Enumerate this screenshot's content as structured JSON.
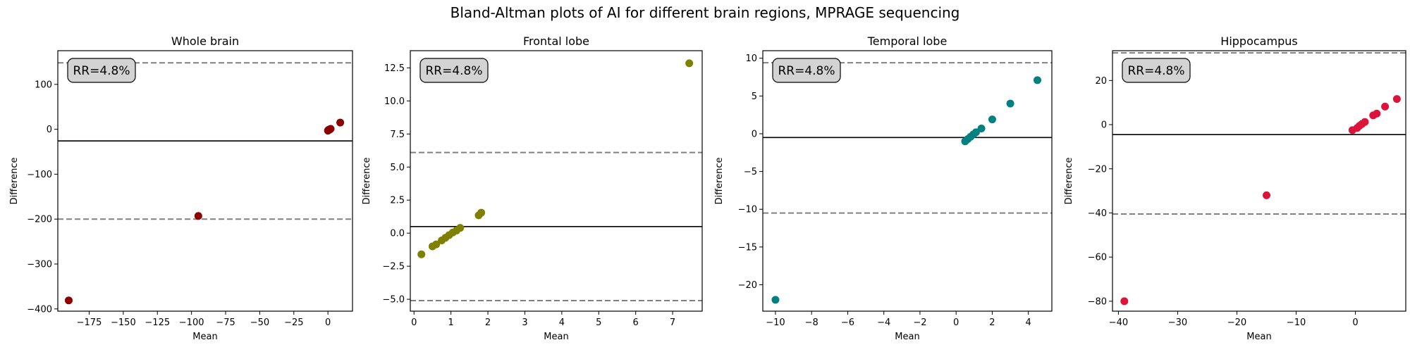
{
  "suptitle": "Bland-Altman plots of AI for different brain regions, MPRAGE sequencing",
  "chart_data": [
    {
      "type": "scatter",
      "title": "Whole brain",
      "xlabel": "Mean",
      "ylabel": "Difference",
      "annotation": "RR=4.8%",
      "color": "#8b0000",
      "xlim": [
        -198,
        18
      ],
      "ylim": [
        -405,
        175
      ],
      "xticks": [
        -175,
        -150,
        -125,
        -100,
        -75,
        -50,
        -25,
        0
      ],
      "yticks": [
        -400,
        -300,
        -200,
        -100,
        0,
        100
      ],
      "mean_line": -26,
      "loa": [
        148,
        -200
      ],
      "x": [
        -190,
        -95,
        0,
        0.5,
        1,
        1.5,
        2,
        1,
        0.3,
        9
      ],
      "y": [
        -381,
        -193,
        -3,
        -2,
        -1,
        0,
        1,
        -0.5,
        -1.5,
        15
      ]
    },
    {
      "type": "scatter",
      "title": "Frontal lobe",
      "xlabel": "Mean",
      "ylabel": "Difference",
      "annotation": "RR=4.8%",
      "color": "#808000",
      "xlim": [
        -0.1,
        7.8
      ],
      "ylim": [
        -5.9,
        13.8
      ],
      "xticks": [
        0,
        1,
        2,
        3,
        4,
        5,
        6,
        7
      ],
      "yticks": [
        -5.0,
        -2.5,
        0.0,
        2.5,
        5.0,
        7.5,
        10.0,
        12.5
      ],
      "ytick_labels": [
        "−5.0",
        "−2.5",
        "0.0",
        "2.5",
        "5.0",
        "7.5",
        "10.0",
        "12.5"
      ],
      "mean_line": 0.5,
      "loa": [
        6.1,
        -5.1
      ],
      "x": [
        0.2,
        0.5,
        0.6,
        0.75,
        0.85,
        0.95,
        1.05,
        1.15,
        1.25,
        1.75,
        1.82,
        7.45
      ],
      "y": [
        -1.6,
        -1.0,
        -0.85,
        -0.55,
        -0.35,
        -0.15,
        0.05,
        0.2,
        0.4,
        1.35,
        1.55,
        12.85
      ]
    },
    {
      "type": "scatter",
      "title": "Temporal lobe",
      "xlabel": "Mean",
      "ylabel": "Difference",
      "annotation": "RR=4.8%",
      "color": "#008080",
      "xlim": [
        -10.7,
        5.3
      ],
      "ylim": [
        -23.5,
        11.0
      ],
      "xticks": [
        -10,
        -8,
        -6,
        -4,
        -2,
        0,
        2,
        4
      ],
      "yticks": [
        -20,
        -15,
        -10,
        -5,
        0,
        5,
        10
      ],
      "mean_line": -0.5,
      "loa": [
        9.4,
        -10.5
      ],
      "x": [
        -10,
        0.5,
        0.65,
        0.8,
        0.95,
        1.1,
        1.4,
        2.0,
        3.0,
        4.5
      ],
      "y": [
        -22,
        -1.0,
        -0.7,
        -0.4,
        -0.1,
        0.2,
        0.7,
        1.9,
        4.0,
        7.1
      ]
    },
    {
      "type": "scatter",
      "title": "Hippocampus",
      "xlabel": "Mean",
      "ylabel": "Difference",
      "annotation": "RR=4.8%",
      "color": "#dc143c",
      "xlim": [
        -41,
        8.5
      ],
      "ylim": [
        -84.5,
        33.5
      ],
      "xticks": [
        -40,
        -30,
        -20,
        -10,
        0
      ],
      "yticks": [
        -80,
        -60,
        -40,
        -20,
        0,
        20
      ],
      "mean_line": -4.5,
      "loa": [
        32.5,
        -40.5
      ],
      "x": [
        -39,
        -15,
        -0.5,
        0.3,
        0.7,
        1.1,
        1.6,
        3.0,
        3.6,
        5.0,
        7.0
      ],
      "y": [
        -80,
        -32,
        -2.5,
        -1.5,
        -0.5,
        0.3,
        1.2,
        4.2,
        5.0,
        8.2,
        11.6
      ]
    }
  ]
}
